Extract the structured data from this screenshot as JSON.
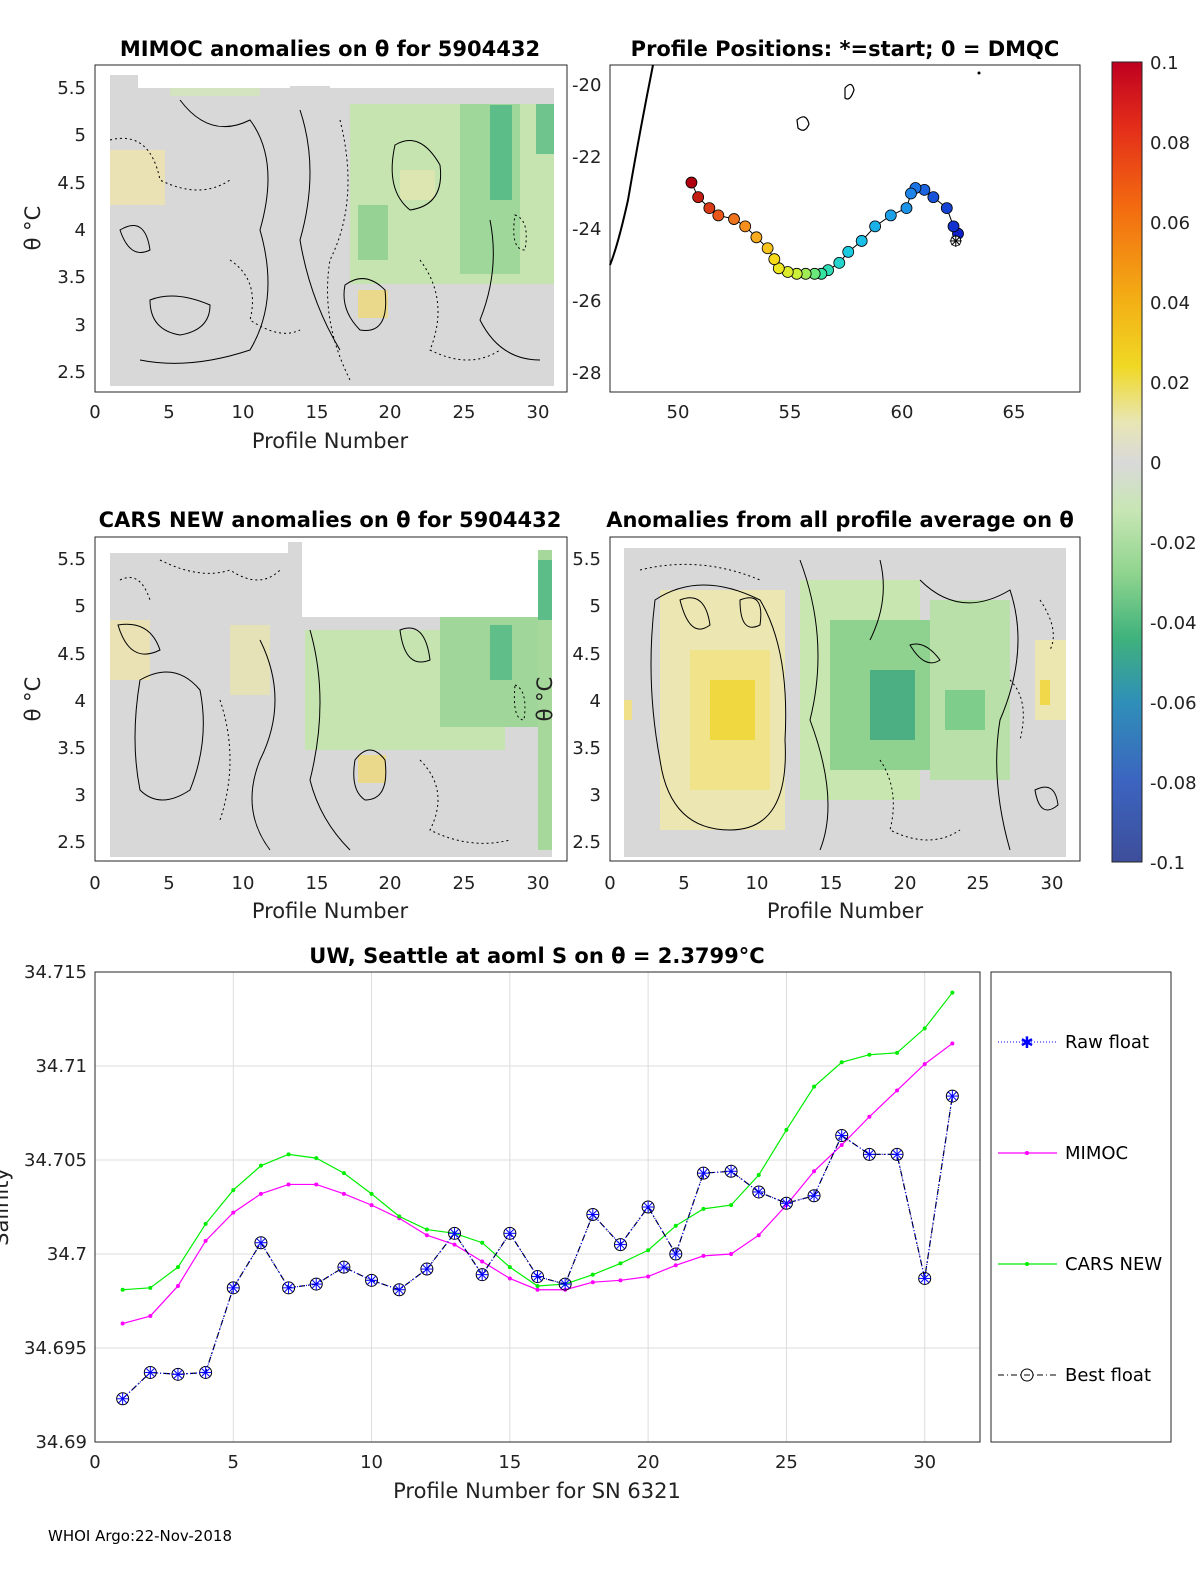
{
  "footer": "WHOI Argo:22-Nov-2018",
  "colorbar": {
    "labels": [
      "0.1",
      "0.08",
      "0.06",
      "0.04",
      "0.02",
      "0",
      "-0.02",
      "-0.04",
      "-0.06",
      "-0.08",
      "-0.1"
    ],
    "range": [
      -0.1,
      0.1
    ]
  },
  "panels": {
    "mimoc": {
      "title": "MIMOC anomalies on θ  for 5904432",
      "ylabel": "θ °C",
      "xlabel": "Profile Number",
      "xticks": [
        "0",
        "5",
        "10",
        "15",
        "20",
        "25",
        "30"
      ],
      "yticks": [
        "5.5",
        "5",
        "4.5",
        "4",
        "3.5",
        "3",
        "2.5"
      ]
    },
    "positions": {
      "title": "Profile Positions: *=start; 0 = DMQC",
      "xticks": [
        "50",
        "55",
        "60",
        "65"
      ],
      "yticks": [
        "-20",
        "-22",
        "-24",
        "-26",
        "-28"
      ]
    },
    "cars": {
      "title": "CARS NEW anomalies on θ for 5904432",
      "ylabel": "θ °C",
      "xlabel": "Profile Number",
      "xticks": [
        "0",
        "5",
        "10",
        "15",
        "20",
        "25",
        "30"
      ],
      "yticks": [
        "5.5",
        "5",
        "4.5",
        "4",
        "3.5",
        "3",
        "2.5"
      ]
    },
    "allprof": {
      "title": "Anomalies from all profile average on θ",
      "ylabel": "θ °C",
      "xlabel": "Profile Number",
      "xticks": [
        "0",
        "5",
        "10",
        "15",
        "20",
        "25",
        "30"
      ],
      "yticks": [
        "5.5",
        "5",
        "4.5",
        "4",
        "3.5",
        "3",
        "2.5"
      ]
    }
  },
  "chart_data": [
    {
      "type": "line",
      "title": "UW, Seattle at aoml S on θ = 2.3799°C",
      "xlabel": "Profile Number for SN 6321",
      "ylabel": "Salinity",
      "xlim": [
        0,
        32
      ],
      "ylim": [
        34.69,
        34.715
      ],
      "xticks": [
        "0",
        "5",
        "10",
        "15",
        "20",
        "25",
        "30"
      ],
      "yticks": [
        "34.715",
        "34.71",
        "34.705",
        "34.7",
        "34.695",
        "34.69"
      ],
      "grid": true,
      "legend_position": "right, outside",
      "x": [
        1,
        2,
        3,
        4,
        5,
        6,
        7,
        8,
        9,
        10,
        11,
        12,
        13,
        14,
        15,
        16,
        17,
        18,
        19,
        20,
        21,
        22,
        23,
        24,
        25,
        26,
        27,
        28,
        29,
        30,
        31
      ],
      "series": [
        {
          "name": "Raw float",
          "color": "#0000ff",
          "values": [
            34.6923,
            34.6937,
            34.6936,
            34.6937,
            34.6982,
            34.7006,
            34.6982,
            34.6984,
            34.6993,
            34.6986,
            34.6981,
            34.6992,
            34.7011,
            34.6989,
            34.7011,
            34.6988,
            34.6984,
            34.7021,
            34.7005,
            34.7025,
            34.7,
            34.7043,
            34.7044,
            34.7033,
            34.7027,
            34.7031,
            34.7063,
            34.7053,
            34.7053,
            34.6987,
            34.7084
          ]
        },
        {
          "name": "MIMOC",
          "color": "#ff00ff",
          "values": [
            34.6963,
            34.6967,
            34.6983,
            34.7007,
            34.7022,
            34.7032,
            34.7037,
            34.7037,
            34.7032,
            34.7026,
            34.7019,
            34.701,
            34.7005,
            34.6996,
            34.6987,
            34.6981,
            34.6981,
            34.6985,
            34.6986,
            34.6988,
            34.6994,
            34.6999,
            34.7,
            34.701,
            34.7026,
            34.7044,
            34.7058,
            34.7073,
            34.7087,
            34.7101,
            34.7112
          ]
        },
        {
          "name": "CARS NEW",
          "color": "#00ee00",
          "values": [
            34.6981,
            34.6982,
            34.6993,
            34.7016,
            34.7034,
            34.7047,
            34.7053,
            34.7051,
            34.7043,
            34.7032,
            34.702,
            34.7013,
            34.7011,
            34.7006,
            34.6993,
            34.6983,
            34.6984,
            34.6989,
            34.6995,
            34.7002,
            34.7015,
            34.7024,
            34.7026,
            34.7042,
            34.7066,
            34.7089,
            34.7102,
            34.7106,
            34.7107,
            34.712,
            34.7139
          ]
        },
        {
          "name": "Best float",
          "color": "#000000",
          "values": [
            34.6923,
            34.6937,
            34.6936,
            34.6937,
            34.6982,
            34.7006,
            34.6982,
            34.6984,
            34.6993,
            34.6986,
            34.6981,
            34.6992,
            34.7011,
            34.6989,
            34.7011,
            34.6988,
            34.6984,
            34.7021,
            34.7005,
            34.7025,
            34.7,
            34.7043,
            34.7044,
            34.7033,
            34.7027,
            34.7031,
            34.7063,
            34.7053,
            34.7053,
            34.6987,
            34.7084
          ]
        }
      ]
    },
    {
      "type": "scatter",
      "title": "Profile Positions: *=start; 0 = DMQC",
      "xlim": [
        47,
        68
      ],
      "ylim": [
        -28.5,
        -19.5
      ],
      "lon": [
        62.5,
        62.3,
        62.0,
        61.4,
        61.0,
        60.6,
        60.4,
        60.2,
        59.5,
        58.8,
        58.2,
        57.6,
        57.2,
        56.7,
        56.4,
        56.1,
        55.7,
        55.3,
        54.9,
        54.5,
        54.3,
        54.0,
        53.5,
        53.0,
        52.5,
        51.8,
        51.4,
        50.9,
        50.6
      ],
      "lat": [
        -24.1,
        -23.9,
        -23.4,
        -23.1,
        -22.9,
        -22.85,
        -23.0,
        -23.4,
        -23.6,
        -23.9,
        -24.3,
        -24.6,
        -24.9,
        -25.1,
        -25.2,
        -25.2,
        -25.2,
        -25.2,
        -25.15,
        -25.05,
        -24.8,
        -24.5,
        -24.2,
        -23.9,
        -23.7,
        -23.6,
        -23.4,
        -23.1,
        -22.7
      ],
      "start_marker": [
        62.4,
        -24.3
      ]
    }
  ]
}
